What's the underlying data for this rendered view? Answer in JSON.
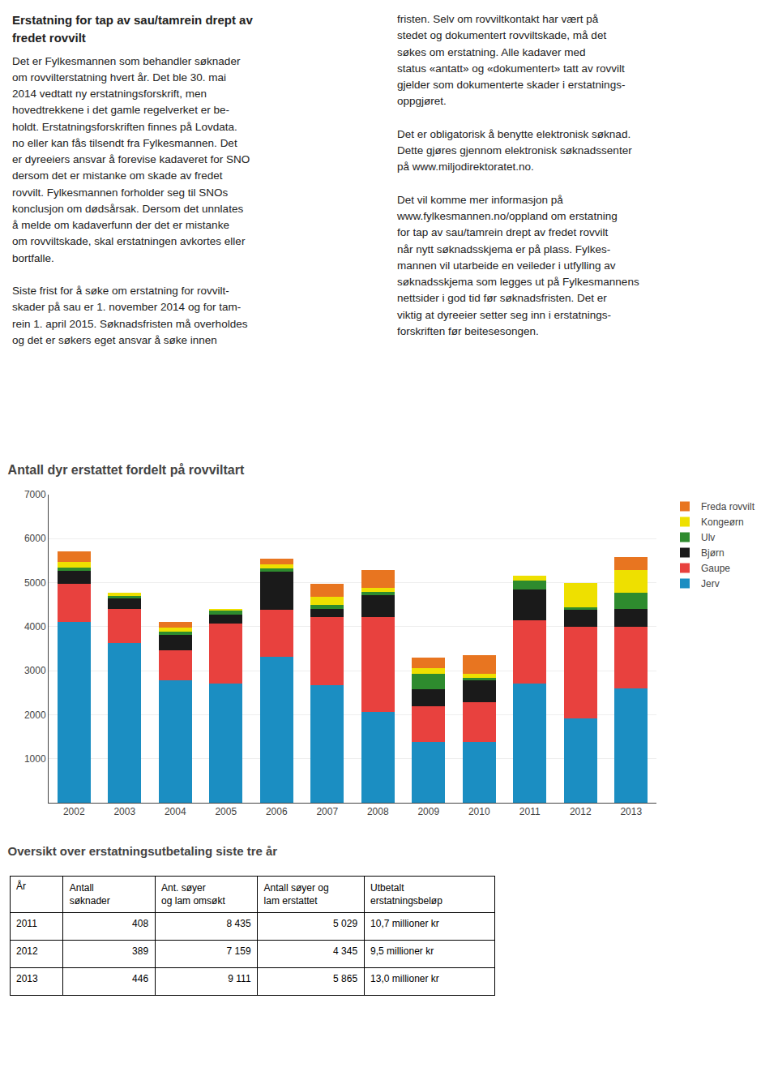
{
  "page_text": {
    "heading": [
      "Erstatning for tap av sau/tamrein drept av",
      "fredet rovvilt"
    ],
    "columns": [
      "Det er Fylkesmannen som behandler søknader\nom rovvilterstatning hvert år. Det ble 30. mai\n2014 vedtatt ny erstatningsforskrift, men\nhovedtrekkene i det gamle regelverket er be-\nholdt. Erstatningsforskriften finnes på Lovdata.\nno eller kan fås tilsendt fra Fylkesmannen. Det\ner dyreeiers ansvar å forevise kadaveret for SNO\ndersom det er mistanke om skade av fredet\nrovvilt. Fylkesmannen forholder seg til SNOs\nkonclusjon om dødsårsak. Dersom det unnlates\nå melde om kadaverfunn der det er mistanke\nom rovviltskade, skal erstatningen avkortes eller\nbortfalle.\n\nSiste frist for å søke om erstatning for rovvilt-\nskader på sau er 1. november 2014 og for tam-\nrein 1. april 2015. Søknadsfristen må overholdes\nog det er søkers eget ansvar å søke innen",
      "fristen. Selv om rovviltkontakt har vært på\nstedet og dokumentert rovviltskade, må det\nsøkes om erstatning. Alle kadaver med\nstatus «antatt» og «dokumentert» tatt av rovvilt\ngjelder som dokumenterte skader i erstatnings-\noppgjøret.\n\nDet er obligatorisk å benytte elektronisk søknad.\nDette gjøres gjennom elektronisk søknadssenter\npå www.miljodirektoratet.no.\n\nDet vil komme mer informasjon på\nwww.fylkesmannen.no/oppland om erstatning\nfor tap av sau/tamrein drept av fredet rovvilt\nnår nytt søknadsskjema er på plass. Fylkes-\nmannen vil utarbeide en veileder i utfylling av\nsøknadsskjema som legges ut på Fylkesmannens\nnettsider i god tid før søknadsfristen. Det er\nviktig at dyreeier setter seg inn i erstatnings-\nforskriften før beitesesongen."
    ]
  },
  "chart_data": [
    {
      "type": "bar",
      "title": "Antall dyr erstattet fordelt på rovviltart",
      "stacked": true,
      "categories": [
        "2002",
        "2003",
        "2004",
        "2005",
        "2006",
        "2007",
        "2008",
        "2009",
        "2010",
        "2011",
        "2012",
        "2013"
      ],
      "series": [
        {
          "name": "Jerv",
          "color": "#1B8EC2",
          "values": [
            4100,
            3620,
            2780,
            2700,
            3320,
            2680,
            2060,
            1380,
            1380,
            2700,
            1920,
            2600
          ]
        },
        {
          "name": "Gaupe",
          "color": "#E8413E",
          "values": [
            870,
            780,
            680,
            1380,
            1060,
            1530,
            2150,
            820,
            900,
            1450,
            2070,
            1400
          ]
        },
        {
          "name": "Bjørn",
          "color": "#1A1A1A",
          "values": [
            300,
            250,
            350,
            200,
            870,
            200,
            500,
            380,
            500,
            700,
            400,
            400
          ]
        },
        {
          "name": "Ulv",
          "color": "#2E8B2E",
          "values": [
            80,
            50,
            80,
            80,
            70,
            80,
            80,
            350,
            50,
            200,
            50,
            380
          ]
        },
        {
          "name": "Kongeørn",
          "color": "#EEE000",
          "values": [
            130,
            80,
            80,
            50,
            100,
            180,
            100,
            120,
            100,
            100,
            560,
            500
          ]
        },
        {
          "name": "Freda rovvilt",
          "color": "#E87520",
          "values": [
            230,
            0,
            130,
            0,
            130,
            300,
            400,
            250,
            430,
            0,
            0,
            300
          ]
        }
      ],
      "ylim": [
        0,
        7000
      ],
      "yticks": [
        1000,
        2000,
        3000,
        4000,
        5000,
        6000,
        7000
      ],
      "grid": true,
      "legend": "right"
    },
    {
      "type": "table",
      "title": "Oversikt over erstatningsutbetaling siste tre år",
      "columns": [
        [
          "År"
        ],
        [
          "Antall",
          "søknader"
        ],
        [
          "Ant. søyer",
          "og lam omsøkt"
        ],
        [
          "Antall søyer og",
          "lam erstattet"
        ],
        [
          "Utbetalt",
          "erstatningsbeløp"
        ]
      ],
      "rows": [
        [
          "2011",
          "408",
          "8 435",
          "5 029",
          "10,7 millioner kr"
        ],
        [
          "2012",
          "389",
          "7 159",
          "4 345",
          "9,5 millioner kr"
        ],
        [
          "2013",
          "446",
          "9 111",
          "5 865",
          "13,0 millioner kr"
        ]
      ]
    }
  ]
}
